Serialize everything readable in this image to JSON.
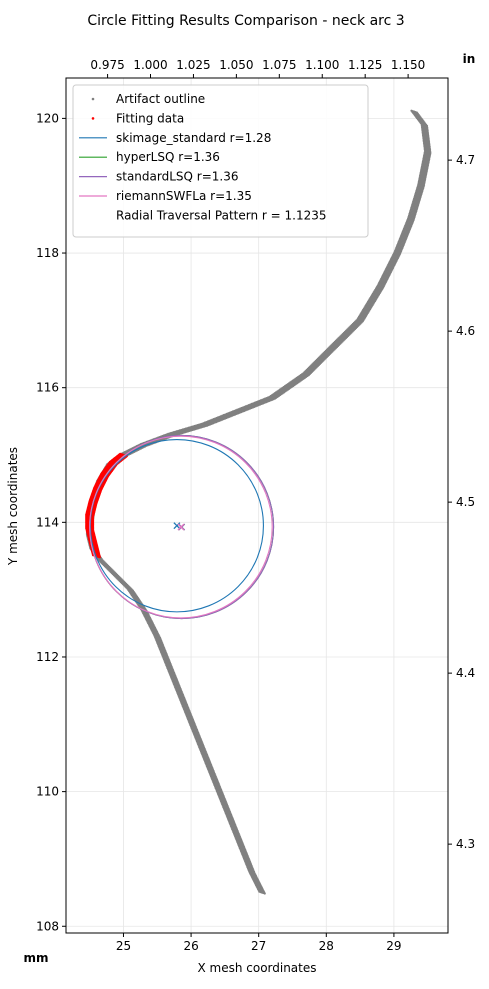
{
  "chart_data": {
    "type": "scatter",
    "title": "Circle Fitting Results Comparison - neck arc 3",
    "xlabel": "X mesh coordinates",
    "ylabel": "Y mesh coordinates",
    "x_unit_label": "mm",
    "y2_unit_label": "in",
    "xlim": [
      24.15,
      29.8
    ],
    "ylim": [
      107.9,
      120.6
    ],
    "x_ticks": [
      25,
      26,
      27,
      28,
      29
    ],
    "y_ticks": [
      108,
      110,
      112,
      114,
      116,
      118,
      120
    ],
    "x2_ticks": [
      0.975,
      1.0,
      1.025,
      1.05,
      1.075,
      1.1,
      1.125,
      1.15
    ],
    "x2_tick_labels": [
      "0.975",
      "1.000",
      "1.025",
      "1.050",
      "1.075",
      "1.100",
      "1.125",
      "1.150"
    ],
    "y2_ticks": [
      4.3,
      4.4,
      4.5,
      4.6,
      4.7
    ],
    "y2_tick_labels": [
      "4.3",
      "4.4",
      "4.5",
      "4.6",
      "4.7"
    ],
    "grid": true,
    "legend_position": "top-left",
    "series": [
      {
        "name": "Artifact outline",
        "kind": "scatter",
        "color": "#808080",
        "points": [
          [
            27.05,
            108.5
          ],
          [
            26.9,
            108.8
          ],
          [
            26.7,
            109.3
          ],
          [
            26.5,
            109.8
          ],
          [
            26.3,
            110.3
          ],
          [
            26.1,
            110.8
          ],
          [
            25.9,
            111.3
          ],
          [
            25.7,
            111.8
          ],
          [
            25.5,
            112.3
          ],
          [
            25.3,
            112.7
          ],
          [
            25.1,
            113.0
          ],
          [
            24.9,
            113.2
          ],
          [
            24.65,
            113.45
          ],
          [
            24.55,
            113.6
          ],
          [
            24.5,
            113.8
          ],
          [
            24.5,
            114.0
          ],
          [
            24.55,
            114.3
          ],
          [
            24.65,
            114.6
          ],
          [
            24.8,
            114.85
          ],
          [
            25.0,
            115.0
          ],
          [
            25.3,
            115.15
          ],
          [
            25.7,
            115.3
          ],
          [
            26.2,
            115.45
          ],
          [
            26.7,
            115.65
          ],
          [
            27.2,
            115.85
          ],
          [
            27.7,
            116.2
          ],
          [
            28.1,
            116.6
          ],
          [
            28.5,
            117.0
          ],
          [
            28.8,
            117.5
          ],
          [
            29.05,
            118.0
          ],
          [
            29.25,
            118.5
          ],
          [
            29.4,
            119.0
          ],
          [
            29.5,
            119.5
          ],
          [
            29.45,
            119.9
          ],
          [
            29.3,
            120.1
          ]
        ]
      },
      {
        "name": "Fitting data",
        "kind": "scatter",
        "color": "#ff0000",
        "points": [
          [
            24.6,
            113.5
          ],
          [
            24.55,
            113.7
          ],
          [
            24.5,
            113.9
          ],
          [
            24.5,
            114.1
          ],
          [
            24.55,
            114.3
          ],
          [
            24.62,
            114.5
          ],
          [
            24.72,
            114.7
          ],
          [
            24.85,
            114.88
          ],
          [
            25.0,
            115.0
          ]
        ]
      },
      {
        "name": "skimage_standard r=1.28",
        "kind": "circle",
        "color": "#1f77b4",
        "center": [
          25.79,
          113.95
        ],
        "r": 1.28
      },
      {
        "name": "hyperLSQ r=1.36",
        "kind": "circle",
        "color": "#2ca02c",
        "center": [
          25.86,
          113.93
        ],
        "r": 1.36
      },
      {
        "name": "standardLSQ r=1.36",
        "kind": "circle",
        "color": "#9467bd",
        "center": [
          25.86,
          113.93
        ],
        "r": 1.36
      },
      {
        "name": "riemannSWFLa r=1.35",
        "kind": "circle",
        "color": "#e377c2",
        "center": [
          25.85,
          113.93
        ],
        "r": 1.35
      },
      {
        "name": "Radial Traversal Pattern r = 1.1235",
        "kind": "label"
      }
    ]
  }
}
